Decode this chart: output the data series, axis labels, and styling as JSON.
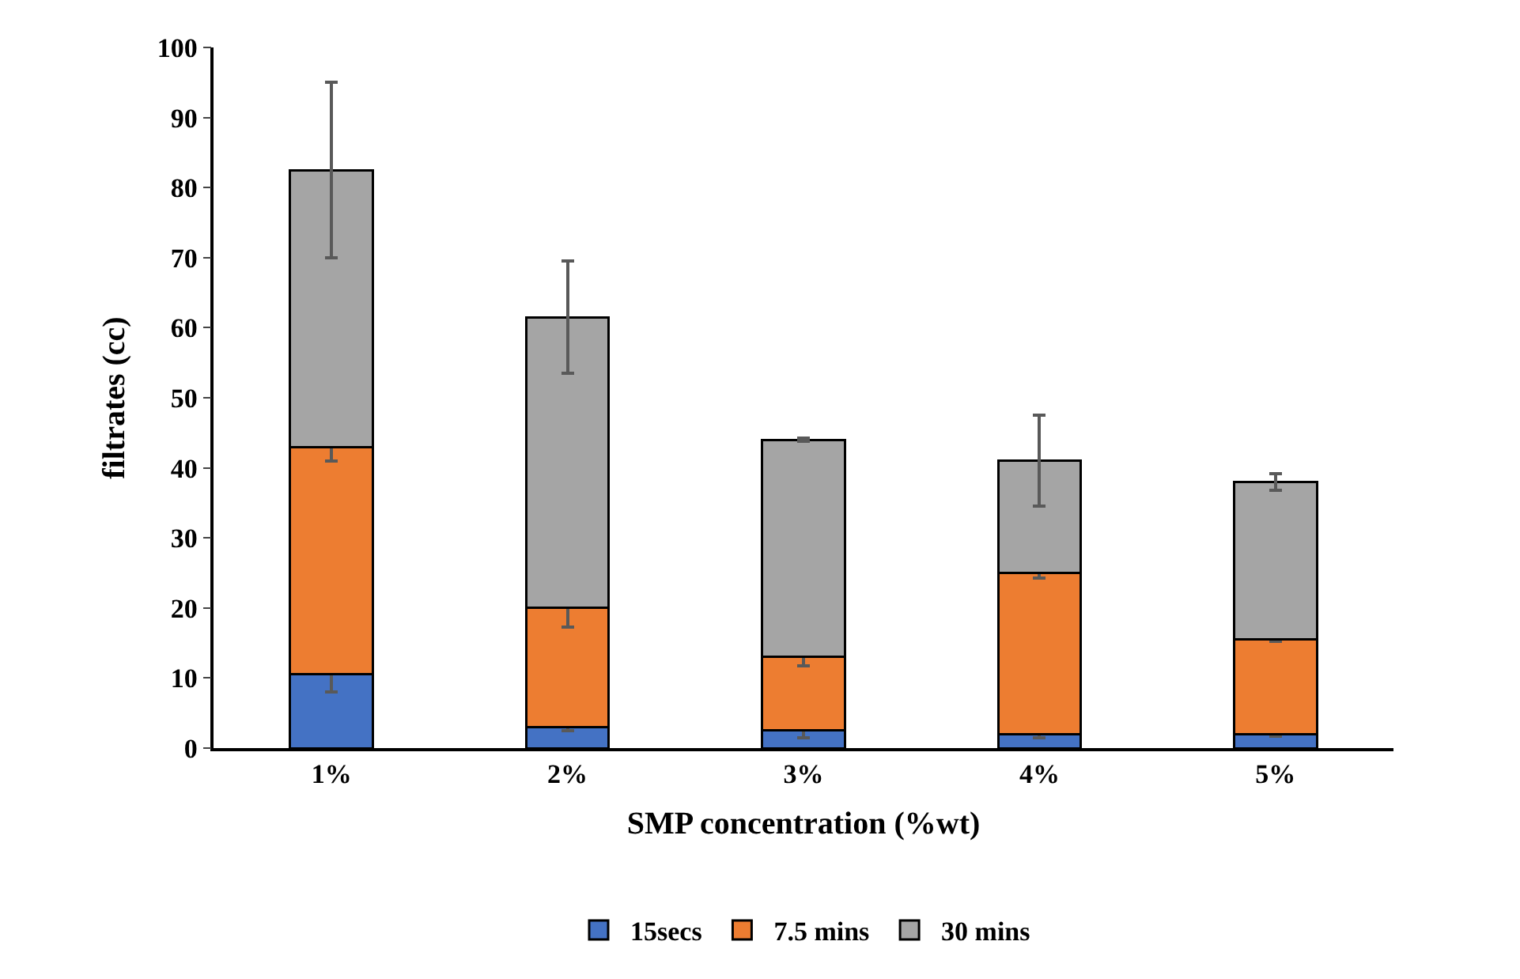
{
  "chart_data": {
    "type": "bar",
    "stacked": true,
    "xlabel": "SMP concentration (%wt)",
    "ylabel": "filtrates (cc)",
    "categories": [
      "1%",
      "2%",
      "3%",
      "4%",
      "5%"
    ],
    "ylim": [
      0,
      100
    ],
    "yticks": [
      0,
      10,
      20,
      30,
      40,
      50,
      60,
      70,
      80,
      90,
      100
    ],
    "legend": "bottom",
    "series": [
      {
        "name": "15secs",
        "color": "#4472c4",
        "values": [
          10.5,
          3,
          2.5,
          2,
          2
        ],
        "errors": [
          2.5,
          0.5,
          1,
          0.5,
          0.3
        ]
      },
      {
        "name": "7.5 mins",
        "color": "#ed7d31",
        "values": [
          32.5,
          17,
          10.5,
          23,
          13.5
        ],
        "errors": [
          2,
          2.7,
          1.3,
          0.7,
          0.3
        ]
      },
      {
        "name": "30 mins",
        "color": "#a5a5a5",
        "values": [
          39.5,
          41.5,
          31,
          16,
          22.5
        ],
        "errors": [
          12.5,
          8,
          0.2,
          6.5,
          1.2
        ]
      }
    ]
  }
}
